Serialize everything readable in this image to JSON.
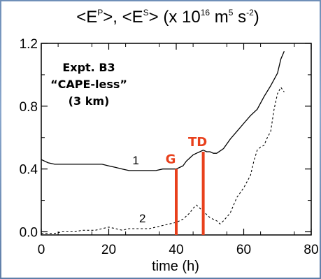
{
  "chart_data": {
    "type": "line",
    "title_parts": {
      "p1": "<E",
      "p1_sup": "P",
      "p2": ">, <E",
      "p2_sup": "S",
      "p3": "> (x 10",
      "p3_sup": "16",
      "p4": " m",
      "p4_sup": "5",
      "p5": " s",
      "p5_sup": "-2",
      "p6": ")"
    },
    "xlabel": "time (h)",
    "ylabel": "",
    "xlim": [
      0,
      80
    ],
    "ylim": [
      -0.02,
      1.2
    ],
    "x_ticks": [
      0,
      20,
      40,
      60,
      80
    ],
    "x_tick_labels": [
      "0",
      "20",
      "40",
      "60",
      "80"
    ],
    "y_ticks": [
      0.0,
      0.4,
      0.8,
      1.2
    ],
    "y_tick_labels": [
      "0.0",
      "0.4",
      "0.8",
      "1.2"
    ],
    "annotation": {
      "line1": "Expt. B3",
      "line2": "“CAPE-less”",
      "line3": "(3 km)"
    },
    "series": [
      {
        "label": "1",
        "style": "solid",
        "x": [
          0,
          2,
          4,
          6,
          8,
          10,
          12,
          14,
          16,
          18,
          20,
          22,
          24,
          26,
          28,
          30,
          32,
          34,
          36,
          38,
          40,
          42,
          43,
          44,
          45,
          46,
          47,
          48,
          49,
          50,
          51,
          52,
          54,
          56,
          58,
          60,
          62,
          64,
          66,
          68,
          70,
          71,
          72
        ],
        "y": [
          0.46,
          0.44,
          0.43,
          0.43,
          0.43,
          0.43,
          0.43,
          0.43,
          0.43,
          0.43,
          0.42,
          0.41,
          0.4,
          0.39,
          0.39,
          0.39,
          0.39,
          0.39,
          0.4,
          0.4,
          0.4,
          0.42,
          0.45,
          0.47,
          0.49,
          0.5,
          0.51,
          0.52,
          0.51,
          0.51,
          0.5,
          0.5,
          0.53,
          0.59,
          0.64,
          0.69,
          0.74,
          0.78,
          0.86,
          0.93,
          1.01,
          1.1,
          1.15
        ]
      },
      {
        "label": "2",
        "style": "dashed",
        "x": [
          0,
          2,
          4,
          6,
          8,
          10,
          12,
          14,
          16,
          18,
          20,
          22,
          24,
          26,
          28,
          30,
          32,
          34,
          36,
          38,
          40,
          42,
          44,
          45,
          46,
          47,
          48,
          50,
          52,
          53,
          54,
          56,
          58,
          60,
          62,
          63,
          64,
          65,
          66,
          67,
          68,
          69,
          70,
          71,
          72
        ],
        "y": [
          -0.01,
          -0.01,
          -0.01,
          0.0,
          0.0,
          0.0,
          0.01,
          0.01,
          0.01,
          0.02,
          0.03,
          0.02,
          0.01,
          0.02,
          0.02,
          0.02,
          0.02,
          0.03,
          0.04,
          0.05,
          0.06,
          0.08,
          0.12,
          0.15,
          0.17,
          0.15,
          0.13,
          0.09,
          0.07,
          0.05,
          0.07,
          0.12,
          0.22,
          0.28,
          0.36,
          0.45,
          0.52,
          0.54,
          0.55,
          0.6,
          0.64,
          0.78,
          0.88,
          0.92,
          0.89
        ]
      }
    ],
    "curve_labels": [
      {
        "text": "1",
        "x": 28,
        "y": 0.43
      },
      {
        "text": "2",
        "x": 30,
        "y": 0.06
      }
    ],
    "markers": [
      {
        "label": "G",
        "x": 40,
        "y_top": 0.4,
        "color": "#e8401c"
      },
      {
        "label": "TD",
        "x": 48,
        "y_top": 0.51,
        "color": "#e8401c"
      }
    ]
  }
}
